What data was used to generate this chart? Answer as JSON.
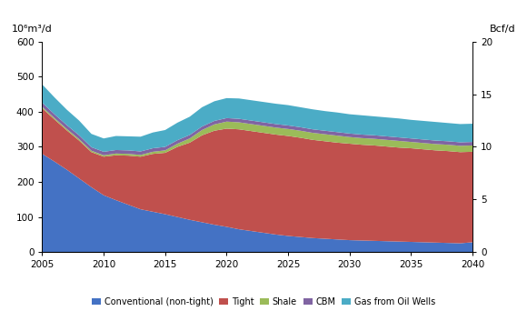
{
  "years": [
    2005,
    2006,
    2007,
    2008,
    2009,
    2010,
    2011,
    2012,
    2013,
    2014,
    2015,
    2016,
    2017,
    2018,
    2019,
    2020,
    2021,
    2022,
    2023,
    2024,
    2025,
    2026,
    2027,
    2028,
    2029,
    2030,
    2031,
    2032,
    2033,
    2034,
    2035,
    2036,
    2037,
    2038,
    2039,
    2040
  ],
  "conventional": [
    280,
    258,
    235,
    210,
    185,
    162,
    148,
    135,
    122,
    115,
    108,
    100,
    92,
    85,
    78,
    72,
    65,
    60,
    55,
    50,
    46,
    43,
    40,
    38,
    36,
    34,
    33,
    32,
    31,
    30,
    29,
    28,
    27,
    26,
    25,
    28
  ],
  "tight": [
    130,
    120,
    112,
    108,
    100,
    110,
    128,
    140,
    150,
    165,
    175,
    200,
    220,
    248,
    268,
    280,
    285,
    285,
    285,
    285,
    285,
    283,
    280,
    278,
    276,
    275,
    273,
    272,
    270,
    268,
    267,
    265,
    263,
    262,
    260,
    258
  ],
  "shale": [
    4,
    4,
    4,
    4,
    4,
    4,
    5,
    5,
    5,
    6,
    7,
    9,
    12,
    15,
    18,
    20,
    20,
    20,
    20,
    20,
    20,
    20,
    20,
    20,
    20,
    19,
    19,
    19,
    19,
    19,
    18,
    18,
    18,
    18,
    18,
    18
  ],
  "cbm": [
    12,
    11,
    11,
    11,
    10,
    10,
    10,
    10,
    10,
    10,
    10,
    10,
    10,
    10,
    10,
    10,
    10,
    10,
    10,
    10,
    10,
    10,
    10,
    10,
    10,
    10,
    10,
    10,
    10,
    10,
    10,
    10,
    10,
    10,
    10,
    10
  ],
  "gas_from_oil": [
    52,
    48,
    44,
    42,
    38,
    38,
    40,
    40,
    42,
    45,
    48,
    50,
    52,
    55,
    56,
    57,
    58,
    58,
    58,
    58,
    58,
    57,
    57,
    56,
    56,
    55,
    55,
    54,
    54,
    54,
    53,
    53,
    53,
    52,
    52,
    52
  ],
  "colors": {
    "conventional": "#4472C4",
    "tight": "#C0504D",
    "shale": "#9BBB59",
    "cbm": "#8064A2",
    "gas_from_oil": "#4BACC6"
  },
  "ylim": [
    0,
    600
  ],
  "xlim": [
    2005,
    2040
  ],
  "ylabel_left": "10⁶m³/d",
  "ylabel_right": "Bcf/d",
  "yticks_left": [
    0,
    100,
    200,
    300,
    400,
    500,
    600
  ],
  "yticks_right_labels": [
    0,
    5,
    10,
    15,
    20
  ],
  "yticks_right_positions": [
    0,
    150,
    300,
    450,
    600
  ],
  "xticks": [
    2005,
    2010,
    2015,
    2020,
    2025,
    2030,
    2035,
    2040
  ],
  "legend_labels": [
    "Conventional (non-tight)",
    "Tight",
    "Shale",
    "CBM",
    "Gas from Oil Wells"
  ],
  "background_color": "#ffffff"
}
